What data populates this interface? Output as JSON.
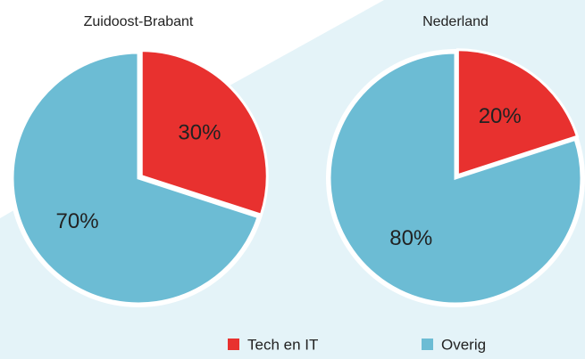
{
  "chart_data": [
    {
      "type": "pie",
      "title": "Zuidoost-Brabant",
      "categories": [
        "Tech en IT",
        "Overig"
      ],
      "values": [
        30,
        70
      ],
      "value_labels": [
        "30%",
        "70%"
      ],
      "colors": [
        "#e8312f",
        "#6cbcd4"
      ]
    },
    {
      "type": "pie",
      "title": "Nederland",
      "categories": [
        "Tech en IT",
        "Overig"
      ],
      "values": [
        20,
        80
      ],
      "value_labels": [
        "20%",
        "80%"
      ],
      "colors": [
        "#e8312f",
        "#6cbcd4"
      ]
    }
  ]
}
